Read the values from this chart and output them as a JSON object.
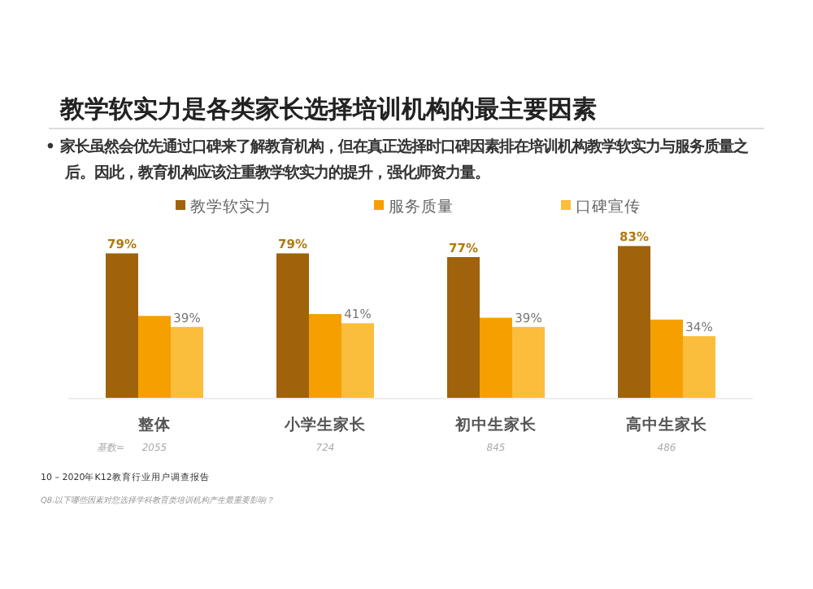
{
  "chart_data": {
    "type": "bar",
    "title": "教学软实力是各类家长选择培训机构的最主要因素",
    "subtitle": "• 家长虽然会优先通过口碑来了解教育机构，但在真正选择时口碑因素排在培训机构教学软实力与服务质量之后。因此，教育机构应该注重教学软实力的提升，强化师资力量。",
    "categories": [
      "整体",
      "小学生家长",
      "初中生家长",
      "高中生家长"
    ],
    "series": [
      {
        "name": "教学软实力",
        "color": "#a0620a",
        "values": [
          79,
          79,
          77,
          83
        ],
        "value_labels": [
          "79%",
          "79%",
          "77%",
          "83%"
        ]
      },
      {
        "name": "服务质量",
        "color": "#f5a000",
        "values": [
          45,
          46,
          44,
          43
        ],
        "value_labels": [
          null,
          null,
          null,
          null
        ]
      },
      {
        "name": "口碑宣传",
        "color": "#fbbd3c",
        "values": [
          39,
          41,
          39,
          34
        ],
        "value_labels": [
          "39%",
          "41%",
          "39%",
          "34%"
        ]
      }
    ],
    "legend": "top",
    "annotations": [
      "基数=",
      "2055",
      "724",
      "845",
      "486",
      "10 – 2020年K12教育行业用户调查报告",
      "Q8.以下哪些因素对您选择学科教育类培训机构产生最重要影响？"
    ]
  }
}
